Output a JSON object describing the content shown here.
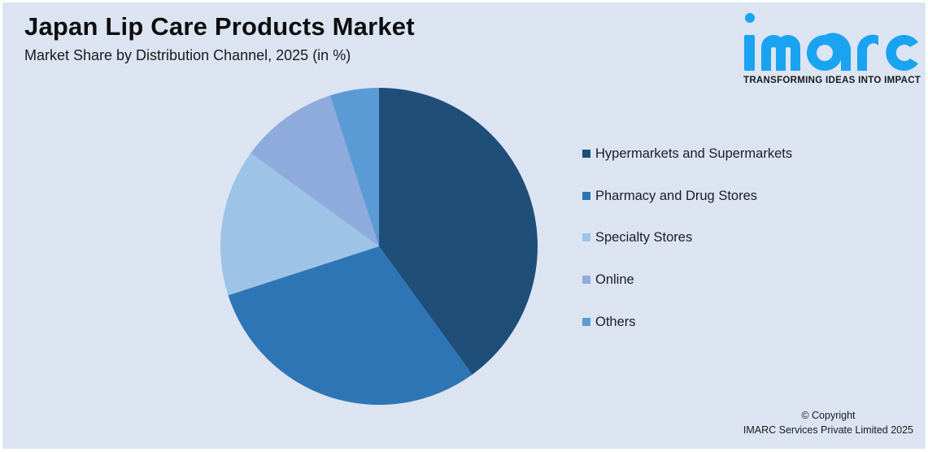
{
  "header": {
    "title": "Japan Lip Care Products Market",
    "subtitle": "Market Share by Distribution Channel, 2025 (in %)"
  },
  "logo": {
    "wordmark": "imarc",
    "tagline": "TRANSFORMING IDEAS INTO IMPACT",
    "color": "#1aa3f0"
  },
  "footer": {
    "copyright_line1": "© Copyright",
    "copyright_line2": "IMARC Services Private Limited 2025"
  },
  "chart_data": {
    "type": "pie",
    "title": "Japan Lip Care Products Market",
    "subtitle": "Market Share by Distribution Channel, 2025 (in %)",
    "categories": [
      "Hypermarkets and Supermarkets",
      "Pharmacy and Drug Stores",
      "Specialty Stores",
      "Online",
      "Others"
    ],
    "values": [
      40,
      30,
      15,
      10,
      5
    ],
    "colors": [
      "#1f4e79",
      "#2e75b6",
      "#9dc3e6",
      "#8faadc",
      "#5b9bd5"
    ],
    "start_angle_deg": 0,
    "direction": "clockwise",
    "legend_position": "right",
    "data_labels": false
  }
}
